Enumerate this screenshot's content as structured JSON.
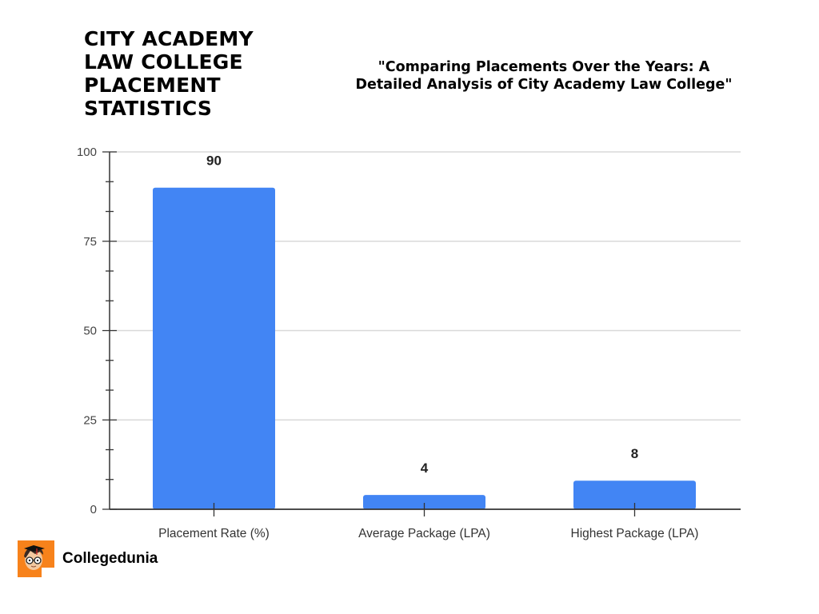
{
  "header": {
    "title_lines": [
      "CITY ACADEMY",
      "LAW COLLEGE",
      "PLACEMENT",
      "STATISTICS"
    ],
    "subtitle_lines": [
      "\"Comparing Placements Over the Years: A",
      "Detailed Analysis of  City Academy Law College\""
    ]
  },
  "branding": {
    "name": "Collegedunia",
    "logo_color": "#f7821b"
  },
  "colors": {
    "bar": "#4285f4",
    "grid": "#d9d9d9",
    "axis": "#333333"
  },
  "chart_data": {
    "type": "bar",
    "title": "\"Comparing Placements Over the Years: A Detailed Analysis of  City Academy Law College\"",
    "xlabel": "",
    "ylabel": "",
    "categories": [
      "Placement Rate (%)",
      "Average Package (LPA)",
      "Highest Package (LPA)"
    ],
    "values": [
      90,
      4,
      8
    ],
    "data_labels": [
      "90",
      "4",
      "8"
    ],
    "ylim": [
      0,
      100
    ],
    "yticks": [
      0,
      25,
      50,
      75,
      100
    ],
    "ytick_labels": [
      "0",
      "25",
      "50",
      "75",
      "100"
    ],
    "minor_ticks_per_major": 3,
    "grid": true,
    "legend": null
  }
}
